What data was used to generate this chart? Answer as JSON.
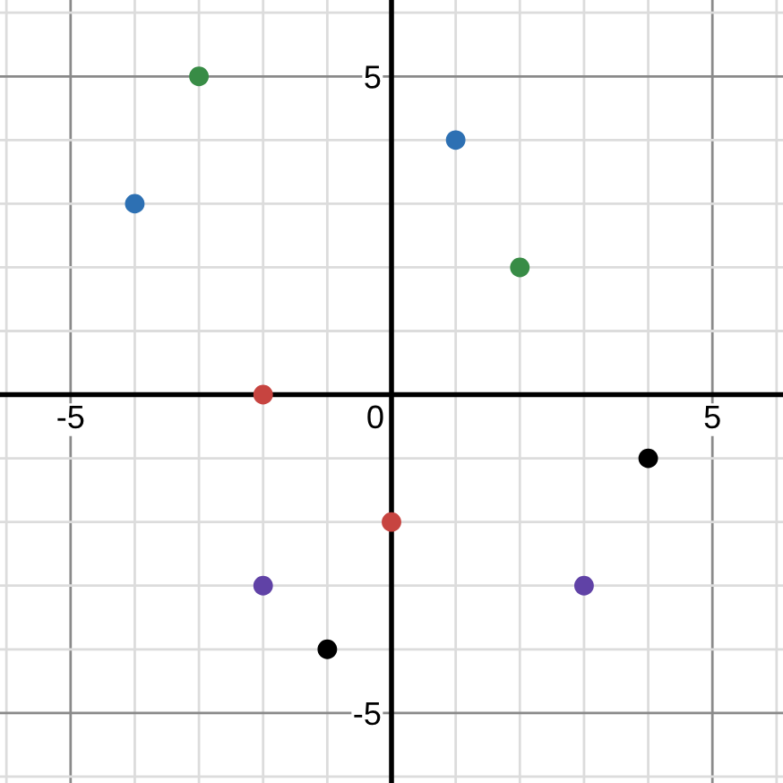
{
  "chart_data": {
    "type": "scatter",
    "marker": "circle",
    "grid": true,
    "xlim": [
      -6.1,
      6.1
    ],
    "ylim": [
      -6.1,
      6.2
    ],
    "xticks": [
      {
        "value": -6,
        "label": null
      },
      -5,
      {
        "value": -4,
        "label": null
      },
      {
        "value": -3,
        "label": null
      },
      {
        "value": -2,
        "label": null
      },
      {
        "value": -1,
        "label": null
      },
      0,
      {
        "value": 1,
        "label": null
      },
      {
        "value": 2,
        "label": null
      },
      {
        "value": 3,
        "label": null
      },
      {
        "value": 4,
        "label": null
      },
      5,
      {
        "value": 6,
        "label": null
      }
    ],
    "yticks": [
      {
        "value": -6,
        "label": null
      },
      -5,
      {
        "value": -4,
        "label": null
      },
      {
        "value": -3,
        "label": null
      },
      {
        "value": -2,
        "label": null
      },
      {
        "value": -1,
        "label": null
      },
      {
        "value": 0,
        "label": null
      },
      {
        "value": 1,
        "label": null
      },
      {
        "value": 2,
        "label": null
      },
      {
        "value": 3,
        "label": null
      },
      {
        "value": 4,
        "label": null
      },
      5,
      {
        "value": 6,
        "label": null
      }
    ],
    "series": [
      {
        "color": "#388c46",
        "x": [
          -3,
          2
        ],
        "values": [
          5,
          2
        ]
      },
      {
        "color": "#2d70b3",
        "x": [
          -4,
          1
        ],
        "values": [
          3,
          4
        ]
      },
      {
        "color": "#c74440",
        "x": [
          -2,
          0
        ],
        "values": [
          0,
          -2
        ]
      },
      {
        "color": "#6042a6",
        "x": [
          -2,
          3
        ],
        "values": [
          -3,
          -3
        ]
      },
      {
        "color": "#000000",
        "x": [
          4,
          -1
        ],
        "values": [
          -1,
          -4
        ]
      }
    ]
  }
}
